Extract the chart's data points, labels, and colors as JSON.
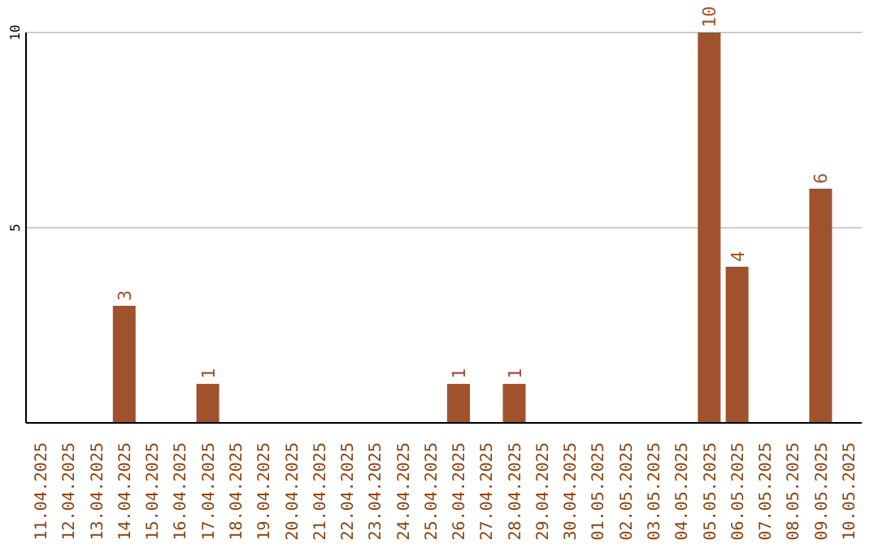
{
  "chart_data": {
    "type": "bar",
    "categories": [
      "11.04.2025",
      "12.04.2025",
      "13.04.2025",
      "14.04.2025",
      "15.04.2025",
      "16.04.2025",
      "17.04.2025",
      "18.04.2025",
      "19.04.2025",
      "20.04.2025",
      "21.04.2025",
      "22.04.2025",
      "23.04.2025",
      "24.04.2025",
      "25.04.2025",
      "26.04.2025",
      "27.04.2025",
      "28.04.2025",
      "29.04.2025",
      "30.04.2025",
      "01.05.2025",
      "02.05.2025",
      "03.05.2025",
      "04.05.2025",
      "05.05.2025",
      "06.05.2025",
      "07.05.2025",
      "08.05.2025",
      "09.05.2025",
      "10.05.2025"
    ],
    "values": [
      0,
      0,
      0,
      3,
      0,
      0,
      1,
      0,
      0,
      0,
      0,
      0,
      0,
      0,
      0,
      1,
      0,
      1,
      0,
      0,
      0,
      0,
      0,
      0,
      10,
      4,
      0,
      0,
      6,
      0
    ],
    "value_labels": [
      null,
      null,
      null,
      "3",
      null,
      null,
      "1",
      null,
      null,
      null,
      null,
      null,
      null,
      null,
      null,
      "1",
      null,
      "1",
      null,
      null,
      null,
      null,
      null,
      null,
      "10",
      "4",
      null,
      null,
      "6",
      null
    ],
    "color": "#a0522d",
    "ylim": [
      0,
      10
    ],
    "yticks": [
      5,
      10
    ],
    "grid": "y"
  }
}
